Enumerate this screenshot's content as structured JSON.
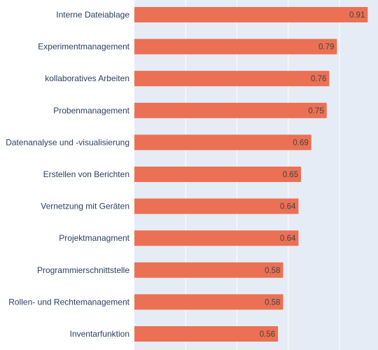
{
  "chart_data": {
    "type": "bar",
    "orientation": "horizontal",
    "title": "",
    "xlabel": "",
    "ylabel": "",
    "xlim": [
      0,
      0.95
    ],
    "grid": true,
    "bar_color": "#ec7053",
    "plot_bg": "#e5ecf6",
    "categories": [
      "Interne Dateiablage",
      "Experimentmanagement",
      "kollaboratives Arbeiten",
      "Probenmanagement",
      "Datenanalyse und -visualisierung",
      "Erstellen von Berichten",
      "Vernetzung mit Geräten",
      "Projektmanagment",
      "Programmierschnittstelle",
      "Rollen- und Rechtemanagement",
      "Inventarfunktion"
    ],
    "values": [
      0.91,
      0.79,
      0.76,
      0.75,
      0.69,
      0.65,
      0.64,
      0.64,
      0.58,
      0.58,
      0.56
    ],
    "value_labels": [
      "0.91",
      "0.79",
      "0.76",
      "0.75",
      "0.69",
      "0.65",
      "0.64",
      "0.64",
      "0.58",
      "0.58",
      "0.56"
    ]
  }
}
